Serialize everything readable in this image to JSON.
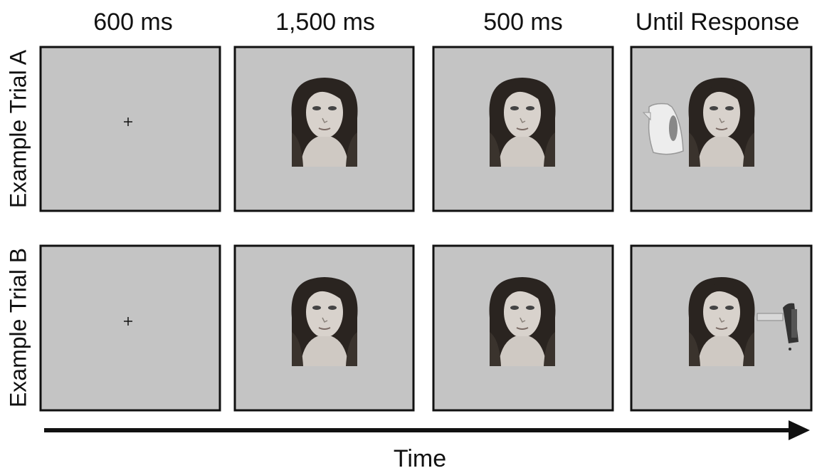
{
  "columns": [
    {
      "label": "600 ms"
    },
    {
      "label": "1,500 ms"
    },
    {
      "label": "500 ms"
    },
    {
      "label": "Until Response"
    }
  ],
  "rows": [
    {
      "label": "Example Trial A"
    },
    {
      "label": "Example Trial B"
    }
  ],
  "axis": {
    "label": "Time"
  }
}
